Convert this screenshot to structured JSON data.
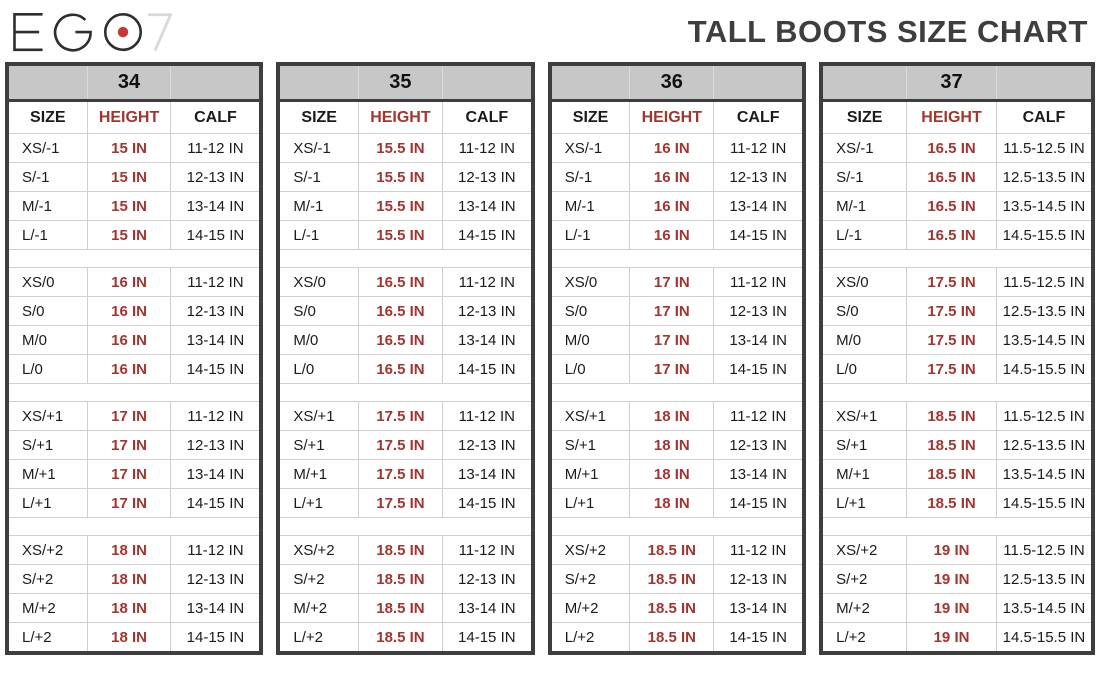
{
  "logo": {
    "text": "EGO 7"
  },
  "title": "TALL BOOTS SIZE CHART",
  "columns": [
    "SIZE",
    "HEIGHT",
    "CALF"
  ],
  "colors": {
    "accent_red": "#a33530",
    "header_gray": "#c7c7c7",
    "border_dark": "#3e3e3e",
    "logo_dot_red": "#c13b36",
    "logo_seven_gray": "#d8d8d8"
  },
  "tables": [
    {
      "size": "34",
      "groups": [
        {
          "rows": [
            {
              "size": "XS/-1",
              "height": "15 IN",
              "calf": "11-12 IN"
            },
            {
              "size": "S/-1",
              "height": "15 IN",
              "calf": "12-13 IN"
            },
            {
              "size": "M/-1",
              "height": "15 IN",
              "calf": "13-14 IN"
            },
            {
              "size": "L/-1",
              "height": "15 IN",
              "calf": "14-15 IN"
            }
          ]
        },
        {
          "rows": [
            {
              "size": "XS/0",
              "height": "16 IN",
              "calf": "11-12 IN"
            },
            {
              "size": "S/0",
              "height": "16 IN",
              "calf": "12-13 IN"
            },
            {
              "size": "M/0",
              "height": "16 IN",
              "calf": "13-14 IN"
            },
            {
              "size": "L/0",
              "height": "16 IN",
              "calf": "14-15 IN"
            }
          ]
        },
        {
          "rows": [
            {
              "size": "XS/+1",
              "height": "17 IN",
              "calf": "11-12 IN"
            },
            {
              "size": "S/+1",
              "height": "17 IN",
              "calf": "12-13 IN"
            },
            {
              "size": "M/+1",
              "height": "17 IN",
              "calf": "13-14 IN"
            },
            {
              "size": "L/+1",
              "height": "17 IN",
              "calf": "14-15 IN"
            }
          ]
        },
        {
          "rows": [
            {
              "size": "XS/+2",
              "height": "18 IN",
              "calf": "11-12 IN"
            },
            {
              "size": "S/+2",
              "height": "18 IN",
              "calf": "12-13 IN"
            },
            {
              "size": "M/+2",
              "height": "18 IN",
              "calf": "13-14 IN"
            },
            {
              "size": "L/+2",
              "height": "18 IN",
              "calf": "14-15 IN"
            }
          ]
        }
      ]
    },
    {
      "size": "35",
      "groups": [
        {
          "rows": [
            {
              "size": "XS/-1",
              "height": "15.5 IN",
              "calf": "11-12 IN"
            },
            {
              "size": "S/-1",
              "height": "15.5 IN",
              "calf": "12-13 IN"
            },
            {
              "size": "M/-1",
              "height": "15.5 IN",
              "calf": "13-14 IN"
            },
            {
              "size": "L/-1",
              "height": "15.5 IN",
              "calf": "14-15 IN"
            }
          ]
        },
        {
          "rows": [
            {
              "size": "XS/0",
              "height": "16.5 IN",
              "calf": "11-12 IN"
            },
            {
              "size": "S/0",
              "height": "16.5 IN",
              "calf": "12-13 IN"
            },
            {
              "size": "M/0",
              "height": "16.5 IN",
              "calf": "13-14 IN"
            },
            {
              "size": "L/0",
              "height": "16.5 IN",
              "calf": "14-15 IN"
            }
          ]
        },
        {
          "rows": [
            {
              "size": "XS/+1",
              "height": "17.5 IN",
              "calf": "11-12 IN"
            },
            {
              "size": "S/+1",
              "height": "17.5 IN",
              "calf": "12-13 IN"
            },
            {
              "size": "M/+1",
              "height": "17.5 IN",
              "calf": "13-14 IN"
            },
            {
              "size": "L/+1",
              "height": "17.5 IN",
              "calf": "14-15 IN"
            }
          ]
        },
        {
          "rows": [
            {
              "size": "XS/+2",
              "height": "18.5 IN",
              "calf": "11-12 IN"
            },
            {
              "size": "S/+2",
              "height": "18.5 IN",
              "calf": "12-13 IN"
            },
            {
              "size": "M/+2",
              "height": "18.5 IN",
              "calf": "13-14 IN"
            },
            {
              "size": "L/+2",
              "height": "18.5 IN",
              "calf": "14-15 IN"
            }
          ]
        }
      ]
    },
    {
      "size": "36",
      "groups": [
        {
          "rows": [
            {
              "size": "XS/-1",
              "height": "16 IN",
              "calf": "11-12 IN"
            },
            {
              "size": "S/-1",
              "height": "16 IN",
              "calf": "12-13 IN"
            },
            {
              "size": "M/-1",
              "height": "16 IN",
              "calf": "13-14 IN"
            },
            {
              "size": "L/-1",
              "height": "16 IN",
              "calf": "14-15 IN"
            }
          ]
        },
        {
          "rows": [
            {
              "size": "XS/0",
              "height": "17 IN",
              "calf": "11-12 IN"
            },
            {
              "size": "S/0",
              "height": "17 IN",
              "calf": "12-13 IN"
            },
            {
              "size": "M/0",
              "height": "17 IN",
              "calf": "13-14 IN"
            },
            {
              "size": "L/0",
              "height": "17 IN",
              "calf": "14-15 IN"
            }
          ]
        },
        {
          "rows": [
            {
              "size": "XS/+1",
              "height": "18 IN",
              "calf": "11-12 IN"
            },
            {
              "size": "S/+1",
              "height": "18 IN",
              "calf": "12-13 IN"
            },
            {
              "size": "M/+1",
              "height": "18 IN",
              "calf": "13-14 IN"
            },
            {
              "size": "L/+1",
              "height": "18 IN",
              "calf": "14-15 IN"
            }
          ]
        },
        {
          "rows": [
            {
              "size": "XS/+2",
              "height": "18.5 IN",
              "calf": "11-12 IN"
            },
            {
              "size": "S/+2",
              "height": "18.5 IN",
              "calf": "12-13 IN"
            },
            {
              "size": "M/+2",
              "height": "18.5 IN",
              "calf": "13-14 IN"
            },
            {
              "size": "L/+2",
              "height": "18.5 IN",
              "calf": "14-15 IN"
            }
          ]
        }
      ]
    },
    {
      "size": "37",
      "groups": [
        {
          "rows": [
            {
              "size": "XS/-1",
              "height": "16.5 IN",
              "calf": "11.5-12.5 IN"
            },
            {
              "size": "S/-1",
              "height": "16.5 IN",
              "calf": "12.5-13.5 IN"
            },
            {
              "size": "M/-1",
              "height": "16.5 IN",
              "calf": "13.5-14.5 IN"
            },
            {
              "size": "L/-1",
              "height": "16.5 IN",
              "calf": "14.5-15.5 IN"
            }
          ]
        },
        {
          "rows": [
            {
              "size": "XS/0",
              "height": "17.5 IN",
              "calf": "11.5-12.5 IN"
            },
            {
              "size": "S/0",
              "height": "17.5 IN",
              "calf": "12.5-13.5 IN"
            },
            {
              "size": "M/0",
              "height": "17.5 IN",
              "calf": "13.5-14.5 IN"
            },
            {
              "size": "L/0",
              "height": "17.5 IN",
              "calf": "14.5-15.5 IN"
            }
          ]
        },
        {
          "rows": [
            {
              "size": "XS/+1",
              "height": "18.5 IN",
              "calf": "11.5-12.5 IN"
            },
            {
              "size": "S/+1",
              "height": "18.5 IN",
              "calf": "12.5-13.5 IN"
            },
            {
              "size": "M/+1",
              "height": "18.5 IN",
              "calf": "13.5-14.5 IN"
            },
            {
              "size": "L/+1",
              "height": "18.5 IN",
              "calf": "14.5-15.5 IN"
            }
          ]
        },
        {
          "rows": [
            {
              "size": "XS/+2",
              "height": "19 IN",
              "calf": "11.5-12.5 IN"
            },
            {
              "size": "S/+2",
              "height": "19 IN",
              "calf": "12.5-13.5 IN"
            },
            {
              "size": "M/+2",
              "height": "19 IN",
              "calf": "13.5-14.5 IN"
            },
            {
              "size": "L/+2",
              "height": "19 IN",
              "calf": "14.5-15.5 IN"
            }
          ]
        }
      ]
    }
  ]
}
